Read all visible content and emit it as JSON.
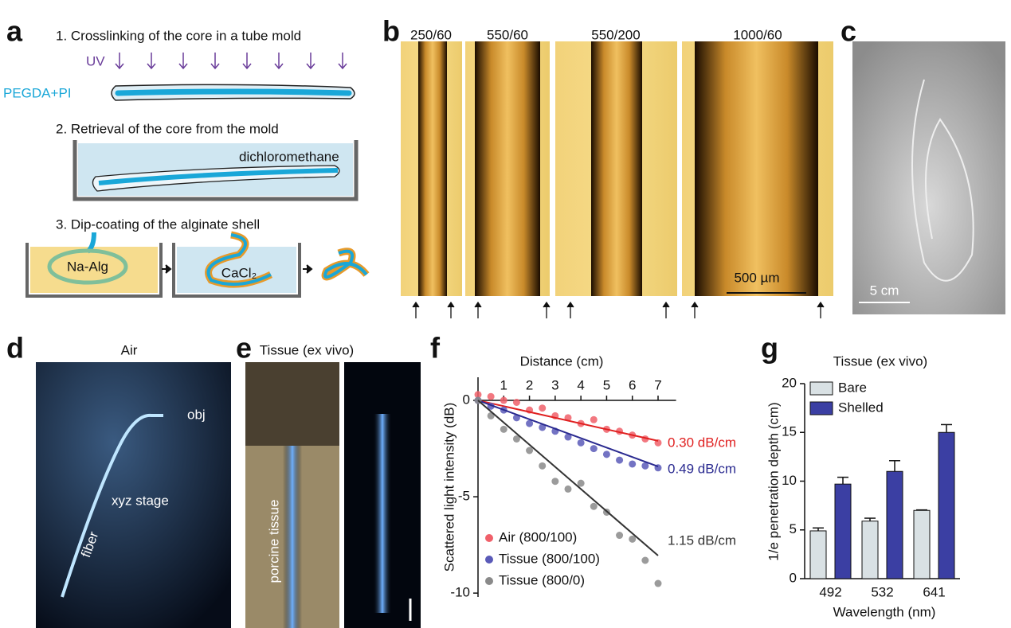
{
  "panel_labels": [
    "a",
    "b",
    "c",
    "d",
    "e",
    "f",
    "g"
  ],
  "panel_a": {
    "steps": [
      "1. Crosslinking of the core in a tube mold",
      "2. Retrieval of the core from the mold",
      "3. Dip-coating of the alginate shell"
    ],
    "uv": "UV",
    "core": "PEGDA+PI",
    "solvent": "dichloromethane",
    "bath1": "Na-Alg",
    "bath2": "CaCl₂"
  },
  "panel_b": {
    "labels": [
      "250/60",
      "550/60",
      "550/200",
      "1000/60"
    ],
    "scale_bar": "500 µm"
  },
  "panel_c": {
    "scale_bar": "5 cm"
  },
  "panel_d": {
    "title": "Air",
    "labels": [
      "obj",
      "xyz stage",
      "fiber"
    ]
  },
  "panel_e": {
    "title": "Tissue (ex vivo)",
    "label": "porcine tissue"
  },
  "chart_data": [
    {
      "type": "scatter",
      "x_label": "Distance (cm)",
      "y_label": "Scattered light intensity (dB)",
      "x": [
        0,
        0.5,
        1,
        1.5,
        2,
        2.5,
        3,
        3.5,
        4,
        4.5,
        5,
        5.5,
        6,
        6.5,
        7
      ],
      "series": [
        {
          "name": "Air (800/100)",
          "color": "#f0606a",
          "fit_color": "#e02020",
          "annotation": "0.30 dB/cm",
          "fit": [
            0,
            -2.1
          ],
          "values": [
            0.3,
            0.2,
            0,
            -0.1,
            -0.5,
            -0.4,
            -0.8,
            -0.9,
            -1.2,
            -1.0,
            -1.5,
            -1.6,
            -1.8,
            -2.0,
            -2.2
          ]
        },
        {
          "name": "Tissue (800/100)",
          "color": "#5a5ab8",
          "fit_color": "#2a2a90",
          "annotation": "0.49 dB/cm",
          "fit": [
            0,
            -3.43
          ],
          "values": [
            0,
            -0.3,
            -0.5,
            -0.9,
            -1.2,
            -1.4,
            -1.6,
            -1.9,
            -2.2,
            -2.5,
            -2.8,
            -3.1,
            -3.3,
            -3.4,
            -3.5
          ]
        },
        {
          "name": "Tissue (800/0)",
          "color": "#8a8a8a",
          "fit_color": "#333333",
          "annotation": "1.15 dB/cm",
          "fit": [
            0,
            -8.05
          ],
          "values": [
            0,
            -0.8,
            -1.5,
            -2.0,
            -2.6,
            -3.4,
            -4.2,
            -4.6,
            -4.3,
            -5.5,
            -5.8,
            -7.0,
            -7.2,
            -8.3,
            -9.5
          ]
        }
      ],
      "fit_x": [
        0,
        7
      ],
      "xlim": [
        0,
        7.7
      ],
      "xticks": [
        1,
        2,
        3,
        4,
        5,
        6,
        7
      ],
      "ylim": [
        -10.2,
        1.2
      ],
      "yticks": [
        0,
        -5,
        -10
      ],
      "legend": "lower left"
    },
    {
      "type": "bar",
      "title": "Tissue (ex vivo)",
      "x_label": "Wavelength (nm)",
      "y_label": "1/e penetration depth (cm)",
      "categories": [
        "492",
        "532",
        "641"
      ],
      "series": [
        {
          "name": "Bare",
          "color": "#d9e1e4",
          "values": [
            4.9,
            5.9,
            7.0
          ],
          "errors": [
            0.3,
            0.3,
            0.05
          ]
        },
        {
          "name": "Shelled",
          "color": "#3b3fa3",
          "values": [
            9.7,
            11.0,
            15.0
          ],
          "errors": [
            0.7,
            1.1,
            0.8
          ]
        }
      ],
      "ylim": [
        0,
        20
      ],
      "yticks": [
        0,
        5,
        10,
        15,
        20
      ],
      "legend": "upper left"
    }
  ]
}
